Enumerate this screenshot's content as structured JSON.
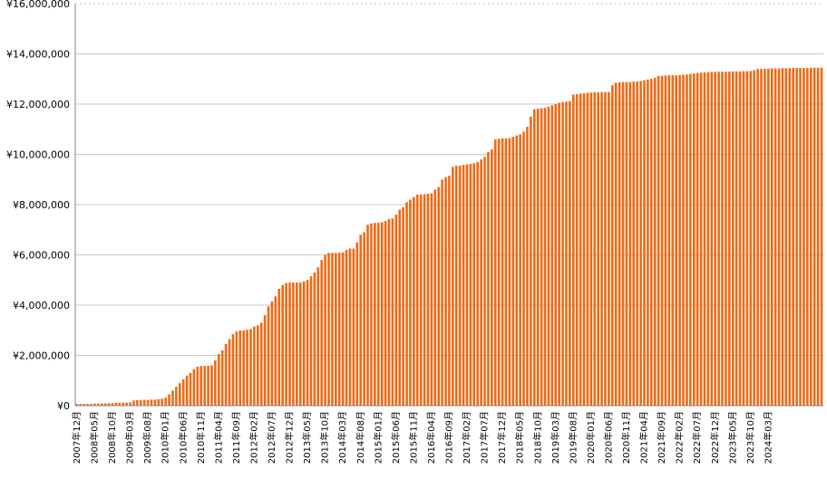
{
  "chart_data": {
    "type": "bar",
    "title": "",
    "xlabel": "",
    "ylabel": "",
    "ylim": [
      0,
      16000000
    ],
    "grid": true,
    "bar_color": "#ee6a14",
    "y_ticks": [
      {
        "value": 0,
        "label": "¥0"
      },
      {
        "value": 2000000,
        "label": "¥2,000,000"
      },
      {
        "value": 4000000,
        "label": "¥4,000,000"
      },
      {
        "value": 6000000,
        "label": "¥6,000,000"
      },
      {
        "value": 8000000,
        "label": "¥8,000,000"
      },
      {
        "value": 10000000,
        "label": "¥10,000,000"
      },
      {
        "value": 12000000,
        "label": "¥12,000,000"
      },
      {
        "value": 14000000,
        "label": "¥14,000,000"
      },
      {
        "value": 16000000,
        "label": "¥16,000,000"
      }
    ],
    "x_tick_labels": [
      "2007年12月",
      "2008年05月",
      "2008年10月",
      "2009年03月",
      "2009年08月",
      "2010年01月",
      "2010年06月",
      "2010年11月",
      "2011年04月",
      "2011年09月",
      "2012年02月",
      "2012年07月",
      "2012年12月",
      "2013年05月",
      "2013年10月",
      "2014年03月",
      "2014年08月",
      "2015年01月",
      "2015年06月",
      "2015年11月",
      "2016年04月",
      "2016年09月",
      "2017年02月",
      "2017年07月",
      "2017年12月",
      "2018年05月",
      "2018年10月",
      "2019年03月",
      "2019年08月",
      "2020年01月",
      "2020年06月",
      "2020年11月",
      "2021年04月",
      "2021年09月",
      "2022年02月",
      "2022年07月",
      "2022年12月",
      "2023年05月",
      "2023年10月",
      "2024年03月"
    ],
    "x_start": "2007年12月",
    "x_end": "2024年03月",
    "values": [
      70000,
      70000,
      70000,
      70000,
      70000,
      80000,
      80000,
      90000,
      90000,
      100000,
      100000,
      120000,
      120000,
      120000,
      120000,
      130000,
      200000,
      220000,
      230000,
      230000,
      230000,
      240000,
      240000,
      260000,
      280000,
      320000,
      450000,
      600000,
      750000,
      900000,
      1050000,
      1200000,
      1300000,
      1450000,
      1550000,
      1580000,
      1580000,
      1590000,
      1600000,
      1800000,
      2050000,
      2200000,
      2450000,
      2650000,
      2850000,
      2950000,
      3000000,
      3000000,
      3020000,
      3050000,
      3150000,
      3200000,
      3300000,
      3600000,
      3950000,
      4150000,
      4350000,
      4650000,
      4800000,
      4880000,
      4900000,
      4900000,
      4900000,
      4900000,
      4950000,
      5000000,
      5150000,
      5300000,
      5500000,
      5800000,
      6000000,
      6080000,
      6080000,
      6080000,
      6090000,
      6100000,
      6200000,
      6250000,
      6250000,
      6500000,
      6800000,
      6900000,
      7200000,
      7250000,
      7270000,
      7280000,
      7300000,
      7350000,
      7420000,
      7450000,
      7600000,
      7800000,
      7900000,
      8100000,
      8200000,
      8300000,
      8400000,
      8400000,
      8420000,
      8430000,
      8450000,
      8600000,
      8700000,
      9000000,
      9100000,
      9150000,
      9500000,
      9550000,
      9550000,
      9580000,
      9600000,
      9620000,
      9650000,
      9700000,
      9800000,
      9900000,
      10100000,
      10200000,
      10600000,
      10620000,
      10640000,
      10640000,
      10650000,
      10700000,
      10750000,
      10800000,
      10900000,
      11100000,
      11500000,
      11800000,
      11820000,
      11840000,
      11860000,
      11900000,
      11950000,
      12000000,
      12050000,
      12080000,
      12100000,
      12120000,
      12380000,
      12400000,
      12420000,
      12430000,
      12450000,
      12460000,
      12470000,
      12470000,
      12480000,
      12480000,
      12480000,
      12750000,
      12850000,
      12870000,
      12880000,
      12880000,
      12880000,
      12890000,
      12900000,
      12920000,
      12950000,
      12980000,
      13000000,
      13050000,
      13120000,
      13130000,
      13140000,
      13150000,
      13150000,
      13150000,
      13160000,
      13170000,
      13180000,
      13200000,
      13220000,
      13240000,
      13250000,
      13260000,
      13270000,
      13280000,
      13280000,
      13290000,
      13290000,
      13290000,
      13300000,
      13300000,
      13300000,
      13300000,
      13310000,
      13310000,
      13320000,
      13350000,
      13400000,
      13400000,
      13410000,
      13410000,
      13420000,
      13420000,
      13420000,
      13430000,
      13430000,
      13430000,
      13440000,
      13440000,
      13440000,
      13440000,
      13440000,
      13440000,
      13450000,
      13450000,
      13450000
    ]
  }
}
